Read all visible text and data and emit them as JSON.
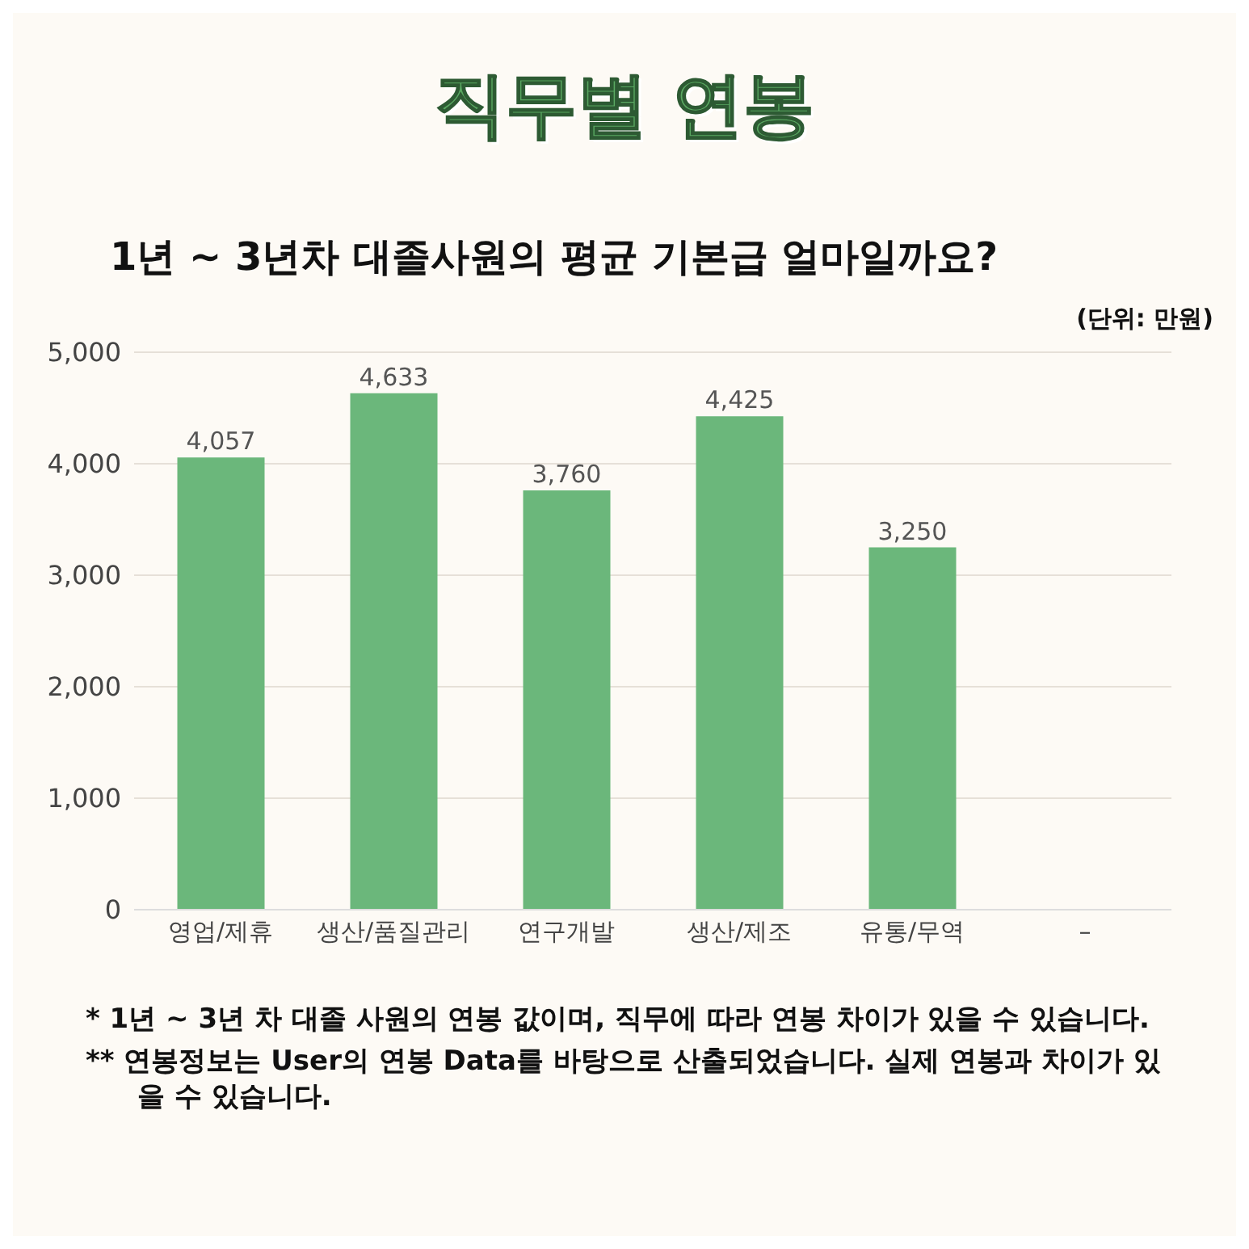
{
  "chart_data": {
    "type": "bar",
    "title": "직무별 연봉",
    "subtitle": "1년 ~ 3년차 대졸사원의 평균 기본급 얼마일까요?",
    "annotations": [
      "(단위: 만원)",
      "*  1년 ~ 3년 차 대졸 사원의 연봉 값이며, 직무에 따라 연봉 차이가 있을 수 있습니다.",
      "** 연봉정보는 User의 연봉 Data를 바탕으로 산출되었습니다. 실제 연봉과 차이가 있을 수 있습니다."
    ],
    "categories": [
      "영업/제휴",
      "생산/품질관리",
      "연구개발",
      "생산/제조",
      "유통/무역",
      "–"
    ],
    "values": [
      4057,
      4633,
      3760,
      4425,
      3250,
      null
    ],
    "color": "#6bb77b",
    "ylim": [
      0,
      5000
    ],
    "yticks": [
      {
        "value": 0,
        "label": "0"
      },
      {
        "value": 1000,
        "label": "1,000"
      },
      {
        "value": 2000,
        "label": "2,000"
      },
      {
        "value": 3000,
        "label": "3,000"
      },
      {
        "value": 4000,
        "label": "4,000"
      },
      {
        "value": 5000,
        "label": "5,000"
      }
    ],
    "value_labels": [
      "4,057",
      "4,633",
      "3,760",
      "4,425",
      "3,250",
      null
    ],
    "grid": "y"
  }
}
